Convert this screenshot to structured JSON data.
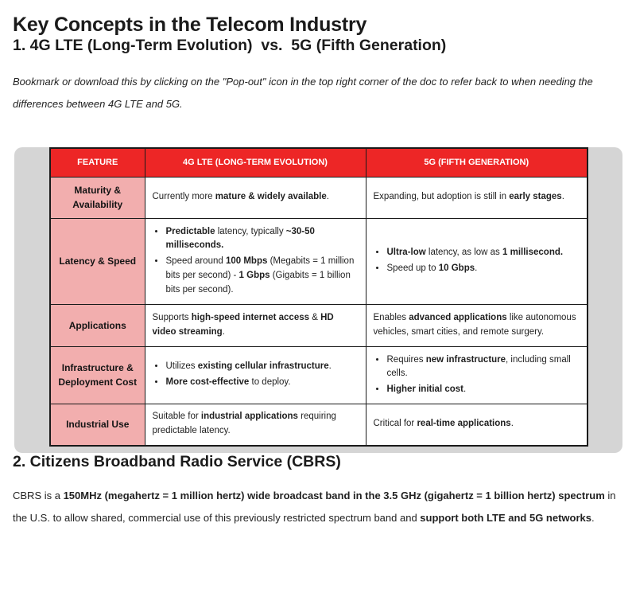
{
  "title": "Key Concepts in the Telecom Industry",
  "section1": {
    "heading": "1. 4G LTE (Long-Term Evolution)  vs.  5G (Fifth Generation)",
    "note": "Bookmark or download this by clicking on the \"Pop-out\" icon in the top right corner of the doc to refer back to when needing the differences between 4G LTE and 5G."
  },
  "table": {
    "headers": [
      "FEATURE",
      "4G LTE (LONG-TERM EVOLUTION)",
      "5G (FIFTH GENERATION)"
    ],
    "rows": [
      {
        "feature": "Maturity & Availability",
        "lte": {
          "bullets": false,
          "items": [
            [
              {
                "t": "Currently more "
              },
              {
                "t": "mature & widely available",
                "b": true
              },
              {
                "t": "."
              }
            ]
          ]
        },
        "fiveg": {
          "bullets": false,
          "items": [
            [
              {
                "t": "Expanding, but adoption is still in "
              },
              {
                "t": "early stages",
                "b": true
              },
              {
                "t": "."
              }
            ]
          ]
        }
      },
      {
        "feature": "Latency & Speed",
        "lte": {
          "bullets": true,
          "items": [
            [
              {
                "t": "Predictable",
                "b": true
              },
              {
                "t": " latency, typically "
              },
              {
                "t": "~30-50 milliseconds.",
                "b": true
              }
            ],
            [
              {
                "t": "Speed around "
              },
              {
                "t": "100 Mbps",
                "b": true
              },
              {
                "t": " (Megabits = 1 million bits per second) - "
              },
              {
                "t": "1 Gbps",
                "b": true
              },
              {
                "t": " (Gigabits = 1 billion bits per second)."
              }
            ]
          ]
        },
        "fiveg": {
          "bullets": true,
          "items": [
            [
              {
                "t": "Ultra-low",
                "b": true
              },
              {
                "t": " latency, as low as "
              },
              {
                "t": "1 millisecond.",
                "b": true
              }
            ],
            [
              {
                "t": "Speed up to "
              },
              {
                "t": "10 Gbps",
                "b": true
              },
              {
                "t": "."
              }
            ]
          ]
        }
      },
      {
        "feature": "Applications",
        "lte": {
          "bullets": false,
          "items": [
            [
              {
                "t": "Supports "
              },
              {
                "t": "high-speed internet access",
                "b": true
              },
              {
                "t": " & "
              },
              {
                "t": "HD video streaming",
                "b": true
              },
              {
                "t": "."
              }
            ]
          ]
        },
        "fiveg": {
          "bullets": false,
          "items": [
            [
              {
                "t": "Enables "
              },
              {
                "t": "advanced applications",
                "b": true
              },
              {
                "t": " like autonomous vehicles, smart cities, and remote surgery."
              }
            ]
          ]
        }
      },
      {
        "feature": "Infrastructure & Deployment Cost",
        "lte": {
          "bullets": true,
          "items": [
            [
              {
                "t": "Utilizes "
              },
              {
                "t": "existing cellular infrastructure",
                "b": true
              },
              {
                "t": "."
              }
            ],
            [
              {
                "t": "More cost-effective",
                "b": true
              },
              {
                "t": " to deploy."
              }
            ]
          ]
        },
        "fiveg": {
          "bullets": true,
          "items": [
            [
              {
                "t": "Requires "
              },
              {
                "t": "new infrastructure",
                "b": true
              },
              {
                "t": ", including small cells."
              }
            ],
            [
              {
                "t": "Higher initial cost",
                "b": true
              },
              {
                "t": "."
              }
            ]
          ]
        }
      },
      {
        "feature": "Industrial Use",
        "lte": {
          "bullets": false,
          "items": [
            [
              {
                "t": "Suitable for "
              },
              {
                "t": "industrial applications",
                "b": true
              },
              {
                "t": " requiring predictable latency."
              }
            ]
          ]
        },
        "fiveg": {
          "bullets": false,
          "items": [
            [
              {
                "t": "Critical for "
              },
              {
                "t": "real-time applications",
                "b": true
              },
              {
                "t": "."
              }
            ]
          ]
        }
      }
    ]
  },
  "section2": {
    "heading": "2. Citizens Broadband Radio Service (CBRS)",
    "paragraph": [
      {
        "t": "CBRS is a "
      },
      {
        "t": "150MHz (megahertz = 1 million hertz) wide broadcast band in the 3.5 GHz (gigahertz = 1 billion hertz) spectrum",
        "b": true
      },
      {
        "t": " in the U.S. to allow shared, commercial use of this previously restricted spectrum band and "
      },
      {
        "t": "support both LTE and 5G networks",
        "b": true
      },
      {
        "t": "."
      }
    ]
  },
  "colors": {
    "header_red": "#ed2626",
    "feature_pink": "#f2aeae",
    "panel_gray": "#d5d5d5"
  }
}
